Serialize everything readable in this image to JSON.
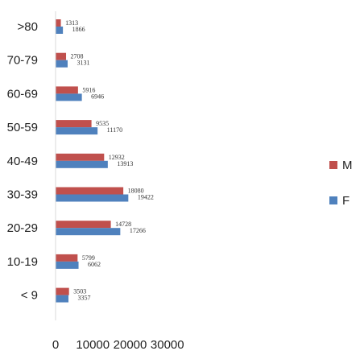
{
  "chart_data": {
    "type": "bar",
    "orientation": "horizontal",
    "title": "",
    "xlabel": "",
    "ylabel": "",
    "categories": [
      ">80",
      "70-79",
      "60-69",
      "50-59",
      "40-49",
      "30-39",
      "20-29",
      "10-19",
      "< 9"
    ],
    "series": [
      {
        "name": "M",
        "color": "#c0504d",
        "values": [
          1313,
          2708,
          5916,
          9535,
          12932,
          18080,
          14728,
          5799,
          3503
        ]
      },
      {
        "name": "F",
        "color": "#4f81bd",
        "values": [
          1866,
          3131,
          6946,
          11170,
          13913,
          19422,
          17266,
          6062,
          3357
        ]
      }
    ],
    "xlim": [
      0,
      30000
    ],
    "xticks": [
      0,
      10000,
      20000,
      30000
    ],
    "grid": false,
    "legend_position": "right",
    "data_labels": true
  }
}
